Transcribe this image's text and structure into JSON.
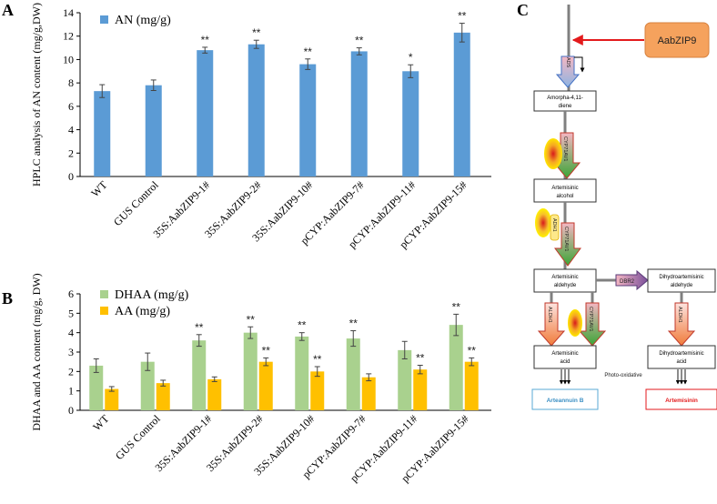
{
  "figure_labels": {
    "a": "A",
    "b": "B",
    "c": "C"
  },
  "chart_data": [
    {
      "type": "bar",
      "panel": "A",
      "ylabel": "HPLC analysis of AN content (mg/g,DW)",
      "ylim": [
        0,
        14
      ],
      "yticks": [
        0,
        2,
        4,
        6,
        8,
        10,
        12,
        14
      ],
      "categories": [
        "WT",
        "GUS Control",
        "35S:AabZIP9-1#",
        "35S:AabZIP9-2#",
        "35S:AabZIP9-10#",
        "pCYP:AabZIP9-7#",
        "pCYP:AabZIP9-11#",
        "pCYP:AabZIP9-15#"
      ],
      "series": [
        {
          "name": "AN (mg/g)",
          "color": "#5b9bd5",
          "values": [
            7.3,
            7.8,
            10.8,
            11.3,
            9.6,
            10.7,
            9.0,
            12.3
          ],
          "errors": [
            0.55,
            0.45,
            0.25,
            0.35,
            0.45,
            0.3,
            0.55,
            0.8
          ],
          "significance": [
            "",
            "",
            "**",
            "**",
            "**",
            "**",
            "*",
            "**"
          ]
        }
      ],
      "legend_position": "top-left"
    },
    {
      "type": "bar",
      "panel": "B",
      "ylabel": "DHAA and AA content (mg/g, DW)",
      "ylim": [
        0,
        6
      ],
      "yticks": [
        0,
        1,
        2,
        3,
        4,
        5,
        6
      ],
      "categories": [
        "WT",
        "GUS Control",
        "35S:AabZIP9-1#",
        "35S:AabZIP9-2#",
        "35S:AabZIP9-10#",
        "pCYP:AabZIP9-7#",
        "pCYP:AabZIP9-11#",
        "pCYP:AabZIP9-15#"
      ],
      "series": [
        {
          "name": "DHAA (mg/g)",
          "color": "#a9d18e",
          "values": [
            2.3,
            2.5,
            3.6,
            4.0,
            3.8,
            3.7,
            3.1,
            4.4
          ],
          "errors": [
            0.35,
            0.45,
            0.3,
            0.3,
            0.2,
            0.4,
            0.45,
            0.55
          ],
          "significance": [
            "",
            "",
            "**",
            "**",
            "**",
            "**",
            "",
            "**"
          ]
        },
        {
          "name": "AA (mg/g)",
          "color": "#ffc000",
          "values": [
            1.1,
            1.4,
            1.6,
            2.5,
            2.0,
            1.7,
            2.1,
            2.5
          ],
          "errors": [
            0.12,
            0.15,
            0.12,
            0.2,
            0.25,
            0.18,
            0.22,
            0.2
          ],
          "significance": [
            "",
            "",
            "",
            "**",
            "**",
            "",
            "**",
            "**"
          ]
        }
      ],
      "legend_position": "top-left"
    }
  ],
  "pathway": {
    "regulator": "AabZIP9",
    "enzymes": {
      "ads": "ADS",
      "cyp1": "CYP71AV1",
      "cyp2": "CYP71AV1",
      "cyp3": "CYP71AV1",
      "adh1": "ADH1",
      "dbr2": "DBR2",
      "aldh1a": "ALDH1",
      "aldh1b": "ALDH1"
    },
    "compounds": {
      "amorpha": [
        "Amorpha-4,11-",
        "diene"
      ],
      "alcohol": [
        "Artemisinic",
        "alcohol"
      ],
      "aldehyde": [
        "Artemisinic",
        "aldehyde"
      ],
      "dh_aldehyde": [
        "Dihydroartemisinic",
        "aldehyde"
      ],
      "acid": [
        "Artemisinic",
        "acid"
      ],
      "dh_acid": [
        "Dihydroartemisinic",
        "acid"
      ]
    },
    "photo_oxidative": "Photo-oxidative",
    "arteannuin_b": "Arteannuin B",
    "artemisinin": "Artemisinin"
  }
}
